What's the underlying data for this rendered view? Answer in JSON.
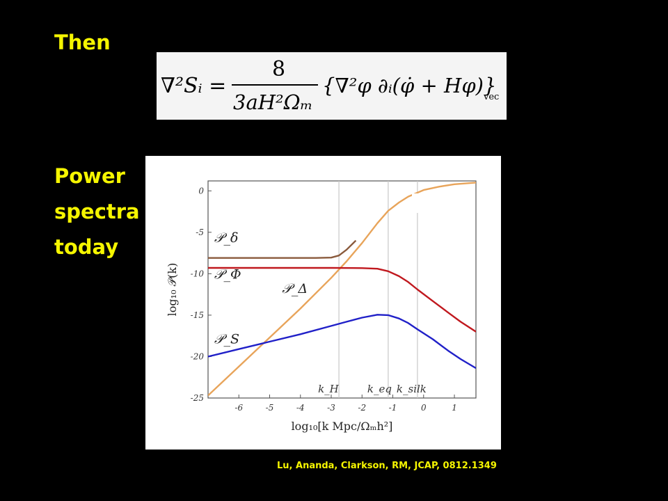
{
  "slide": {
    "title": "Then",
    "left_heading_lines": [
      "Power",
      "spectra",
      "today"
    ],
    "citation": "Lu, Ananda, Clarkson, RM, JCAP, 0812.1349",
    "text_color": "#f5f500",
    "background": "#000000"
  },
  "equation": {
    "lhs": "∇²Sᵢ =",
    "numerator": "8",
    "denominator": "3aH²Ωₘ",
    "rhs": "{∇²φ ∂ᵢ(φ̇ + Hφ)}",
    "subscript": "vec"
  },
  "chart_data": {
    "type": "line",
    "xlabel": "log₁₀[k Mpc/Ωₘh²]",
    "ylabel": "log₁₀ 𝒫(k)",
    "xlim": [
      -7,
      1.7
    ],
    "ylim": [
      -25,
      1.2
    ],
    "xticks": [
      -6,
      -5,
      -4,
      -3,
      -2,
      -1,
      0,
      1
    ],
    "yticks": [
      0,
      -5,
      -10,
      -15,
      -20,
      -25
    ],
    "vlines": [
      {
        "label": "k_H",
        "x": -2.75
      },
      {
        "label": "k_eq",
        "x": -1.15
      },
      {
        "label": "k_silk",
        "x": -0.2
      }
    ],
    "series": [
      {
        "name": "𝒫_δ",
        "color": "#8a5a3c",
        "x": [
          -7,
          -3.5,
          -3.0,
          -2.75,
          -2.5,
          -2.2
        ],
        "y": [
          -8.1,
          -8.1,
          -8.05,
          -7.8,
          -7.1,
          -6.0
        ]
      },
      {
        "name": "𝒫_Δ",
        "color": "#e8a45a",
        "x": [
          -7,
          -6,
          -5,
          -4,
          -3,
          -2.5,
          -2,
          -1.5,
          -1.15,
          -0.8,
          -0.5,
          0,
          0.5,
          1,
          1.7
        ],
        "y": [
          -24.7,
          -21.2,
          -17.7,
          -14.2,
          -10.5,
          -8.5,
          -6.3,
          -3.9,
          -2.4,
          -1.4,
          -0.7,
          0.1,
          0.5,
          0.8,
          1.0
        ]
      },
      {
        "name": "𝒫_Φ",
        "color": "#c0181e",
        "x": [
          -7,
          -3,
          -2,
          -1.5,
          -1.15,
          -0.8,
          -0.5,
          -0.2,
          0.3,
          0.8,
          1.2,
          1.7
        ],
        "y": [
          -9.3,
          -9.3,
          -9.32,
          -9.4,
          -9.7,
          -10.3,
          -11.0,
          -11.9,
          -13.3,
          -14.7,
          -15.8,
          -17.0
        ]
      },
      {
        "name": "𝒫_S",
        "color": "#2020c8",
        "x": [
          -7,
          -6,
          -5,
          -4,
          -3,
          -2.5,
          -2,
          -1.5,
          -1.15,
          -0.8,
          -0.5,
          -0.2,
          0.3,
          0.8,
          1.2,
          1.7
        ],
        "y": [
          -20.0,
          -19.1,
          -18.2,
          -17.3,
          -16.3,
          -15.8,
          -15.3,
          -14.95,
          -15.0,
          -15.4,
          -15.95,
          -16.7,
          -17.9,
          -19.3,
          -20.3,
          -21.4
        ]
      }
    ]
  }
}
